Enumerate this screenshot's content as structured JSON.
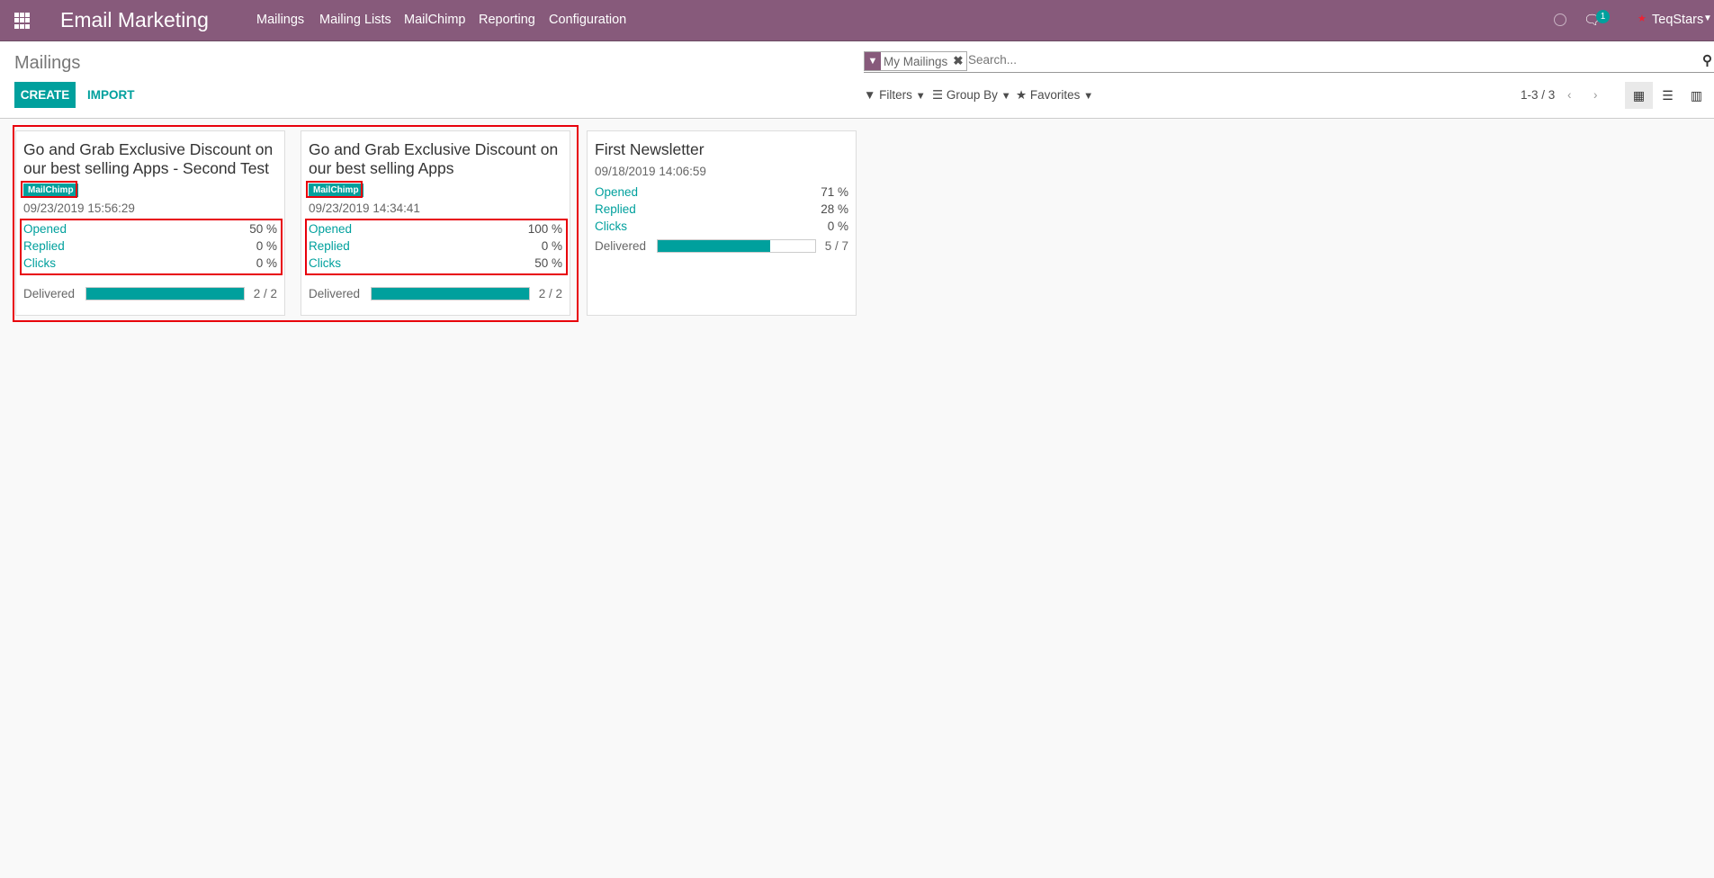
{
  "navbar": {
    "brand": "Email Marketing",
    "menu": [
      "Mailings",
      "Mailing Lists",
      "MailChimp",
      "Reporting",
      "Configuration"
    ],
    "chat_badge": "1",
    "user": "TeqStars",
    "color": "#875A7B"
  },
  "control_panel": {
    "breadcrumb": "Mailings",
    "create_label": "CREATE",
    "import_label": "IMPORT",
    "facet": "My Mailings",
    "search_placeholder": "Search...",
    "filters": "Filters",
    "group_by": "Group By",
    "favorites": "Favorites",
    "pager": "1-3 / 3"
  },
  "accent": "#00A09D",
  "cards": [
    {
      "title": "Go and Grab Exclusive Discount on our best selling Apps - Second Test",
      "tag": "MailChimp",
      "date": "09/23/2019 15:56:29",
      "stats": [
        {
          "label": "Opened",
          "value": "50 %"
        },
        {
          "label": "Replied",
          "value": "0 %"
        },
        {
          "label": "Clicks",
          "value": "0 %"
        }
      ],
      "delivered_label": "Delivered",
      "delivered": "2 / 2",
      "delivered_fraction": 1
    },
    {
      "title": "Go and Grab Exclusive Discount on our best selling Apps",
      "tag": "MailChimp",
      "date": "09/23/2019 14:34:41",
      "stats": [
        {
          "label": "Opened",
          "value": "100 %"
        },
        {
          "label": "Replied",
          "value": "0 %"
        },
        {
          "label": "Clicks",
          "value": "50 %"
        }
      ],
      "delivered_label": "Delivered",
      "delivered": "2 / 2",
      "delivered_fraction": 1
    },
    {
      "title": "First Newsletter",
      "date": "09/18/2019 14:06:59",
      "stats": [
        {
          "label": "Opened",
          "value": "71 %"
        },
        {
          "label": "Replied",
          "value": "28 %"
        },
        {
          "label": "Clicks",
          "value": "0 %"
        }
      ],
      "delivered_label": "Delivered",
      "delivered": "5 / 7",
      "delivered_fraction": 0.714
    }
  ]
}
